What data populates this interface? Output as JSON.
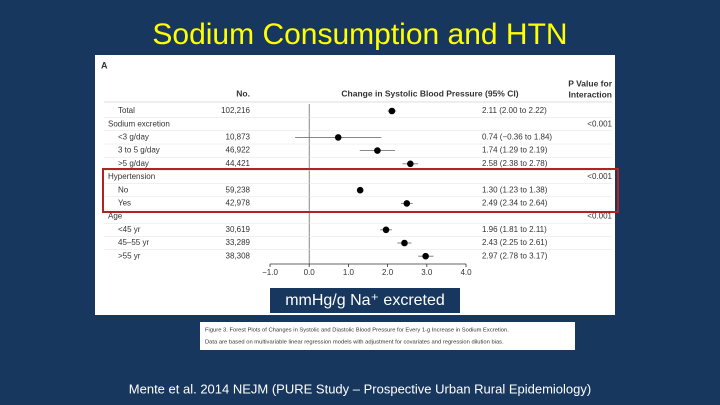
{
  "chart_data": {
    "type": "forest",
    "title": "Sodium Consumption and HTN",
    "panel": "A",
    "count_header": "No.",
    "effect_header": "Change in Systolic Blood Pressure (95% CI)",
    "p_header": [
      "P Value for",
      "Interaction"
    ],
    "categories": [
      "Total",
      "Sodium excretion",
      "<3 g/day",
      "3 to 5 g/day",
      ">5 g/day",
      "Hypertension",
      "No",
      "Yes",
      "Age",
      "<45 yr",
      "45–55 yr",
      ">55 yr"
    ],
    "counts": [
      "102,216",
      null,
      "10,873",
      "46,922",
      "44,421",
      null,
      "59,238",
      "42,978",
      null,
      "30,619",
      "33,289",
      "38,308"
    ],
    "values": [
      2.11,
      null,
      0.74,
      1.74,
      2.58,
      null,
      1.3,
      2.49,
      null,
      1.96,
      2.43,
      2.97
    ],
    "lower": [
      2.0,
      null,
      -0.36,
      1.29,
      2.38,
      null,
      1.23,
      2.34,
      null,
      1.81,
      2.25,
      2.78
    ],
    "upper": [
      2.22,
      null,
      1.84,
      2.19,
      2.78,
      null,
      1.38,
      2.64,
      null,
      2.11,
      2.61,
      3.17
    ],
    "value_labels": [
      "2.11 (2.00 to 2.22)",
      null,
      "0.74 (−0.36 to 1.84)",
      "1.74 (1.29 to 2.19)",
      "2.58 (2.38 to 2.78)",
      null,
      "1.30 (1.23 to 1.38)",
      "2.49 (2.34 to 2.64)",
      null,
      "1.96 (1.81 to 2.11)",
      "2.43 (2.25 to 2.61)",
      "2.97 (2.78 to 3.17)"
    ],
    "p_values": [
      null,
      "<0.001",
      null,
      null,
      null,
      "<0.001",
      null,
      null,
      "<0.001",
      null,
      null,
      null
    ],
    "xlim": [
      -1.0,
      4.0
    ],
    "xticks": [
      {
        "value": -1.0,
        "label": "−1.0"
      },
      {
        "value": 0.0,
        "label": "0.0"
      },
      {
        "value": 1.0,
        "label": "1.0"
      },
      {
        "value": 2.0,
        "label": "2.0"
      },
      {
        "value": 3.0,
        "label": "3.0"
      },
      {
        "value": 4.0,
        "label": "4.0"
      }
    ],
    "x_label": "mmHg/g Na⁺ excreted",
    "caption_title": "Figure 3. Forest Plots of Changes in Systolic and Diastolic Blood Pressure for Every 1-g Increase in Sodium Excretion.",
    "caption_text": "Data are based on multivariable linear regression models with adjustment for covariates and regression dilution bias.",
    "source": "Mente et al. 2014 NEJM (PURE Study – Prospective Urban Rural Epidemiology)"
  }
}
